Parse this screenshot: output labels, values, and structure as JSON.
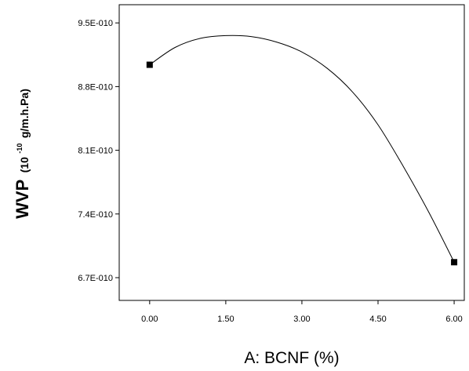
{
  "chart_data": {
    "type": "line",
    "xlabel": "A: BCNF (%)",
    "ylabel": {
      "main": "WVP",
      "unit_prefix": "(10",
      "unit_exponent": "-10",
      "unit_suffix": "g/m.h.Pa)"
    },
    "xlim": [
      -0.6,
      6.2
    ],
    "ylim": [
      6.45e-10,
      9.7e-10
    ],
    "x_ticks": [
      {
        "value": 0.0,
        "label": "0.00"
      },
      {
        "value": 1.5,
        "label": "1.50"
      },
      {
        "value": 3.0,
        "label": "3.00"
      },
      {
        "value": 4.5,
        "label": "4.50"
      },
      {
        "value": 6.0,
        "label": "6.00"
      }
    ],
    "y_ticks": [
      {
        "value": 6.7e-10,
        "label": "6.7E-010"
      },
      {
        "value": 7.4e-10,
        "label": "7.4E-010"
      },
      {
        "value": 8.1e-10,
        "label": "8.1E-010"
      },
      {
        "value": 8.8e-10,
        "label": "8.8E-010"
      },
      {
        "value": 9.5e-10,
        "label": "9.5E-010"
      }
    ],
    "points": [
      {
        "x": 0.0,
        "y": 9.04e-10
      },
      {
        "x": 6.0,
        "y": 6.87e-10
      }
    ],
    "curve": {
      "x": [
        0.0,
        0.5,
        1.0,
        1.5,
        2.0,
        2.5,
        3.0,
        3.5,
        4.0,
        4.5,
        5.0,
        5.5,
        6.0
      ],
      "y": [
        9.04e-10,
        9.23e-10,
        9.33e-10,
        9.36e-10,
        9.35e-10,
        9.29e-10,
        9.18e-10,
        9e-10,
        8.74e-10,
        8.38e-10,
        7.92e-10,
        7.42e-10,
        6.87e-10
      ]
    },
    "grid": false,
    "legend": "none",
    "colors": {
      "line": "#000000",
      "marker": "#000000"
    }
  }
}
